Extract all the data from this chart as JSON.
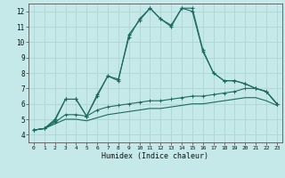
{
  "xlabel": "Humidex (Indice chaleur)",
  "x": [
    0,
    1,
    2,
    3,
    4,
    5,
    6,
    7,
    8,
    9,
    10,
    11,
    12,
    13,
    14,
    15,
    16,
    17,
    18,
    19,
    20,
    21,
    22,
    23
  ],
  "line1": [
    4.3,
    4.4,
    4.9,
    6.3,
    6.3,
    5.2,
    6.5,
    7.8,
    7.6,
    10.3,
    11.5,
    12.2,
    11.5,
    11.0,
    12.2,
    12.0,
    9.4,
    8.0,
    7.5,
    7.5,
    7.3,
    7.0,
    6.8,
    6.0
  ],
  "line2": [
    4.3,
    4.4,
    5.0,
    6.3,
    6.3,
    5.2,
    6.6,
    7.8,
    7.5,
    10.5,
    11.4,
    12.2,
    11.5,
    11.1,
    12.2,
    12.2,
    9.5,
    8.0,
    7.5,
    7.5,
    7.3,
    7.0,
    6.8,
    6.0
  ],
  "line3": [
    4.3,
    4.4,
    4.8,
    5.3,
    5.3,
    5.2,
    5.6,
    5.8,
    5.9,
    6.0,
    6.1,
    6.2,
    6.2,
    6.3,
    6.4,
    6.5,
    6.5,
    6.6,
    6.7,
    6.8,
    7.0,
    7.0,
    6.8,
    6.0
  ],
  "line4": [
    4.3,
    4.4,
    4.7,
    5.0,
    5.0,
    4.9,
    5.1,
    5.3,
    5.4,
    5.5,
    5.6,
    5.7,
    5.7,
    5.8,
    5.9,
    6.0,
    6.0,
    6.1,
    6.2,
    6.3,
    6.4,
    6.4,
    6.2,
    5.9
  ],
  "line_color": "#1c6b5e",
  "bg_color": "#c5e8e8",
  "grid_color": "#b0d8d8",
  "ylim": [
    3.5,
    12.5
  ],
  "xlim": [
    -0.5,
    23.5
  ],
  "yticks": [
    4,
    5,
    6,
    7,
    8,
    9,
    10,
    11,
    12
  ],
  "xticks": [
    0,
    1,
    2,
    3,
    4,
    5,
    6,
    7,
    8,
    9,
    10,
    11,
    12,
    13,
    14,
    15,
    16,
    17,
    18,
    19,
    20,
    21,
    22,
    23
  ]
}
